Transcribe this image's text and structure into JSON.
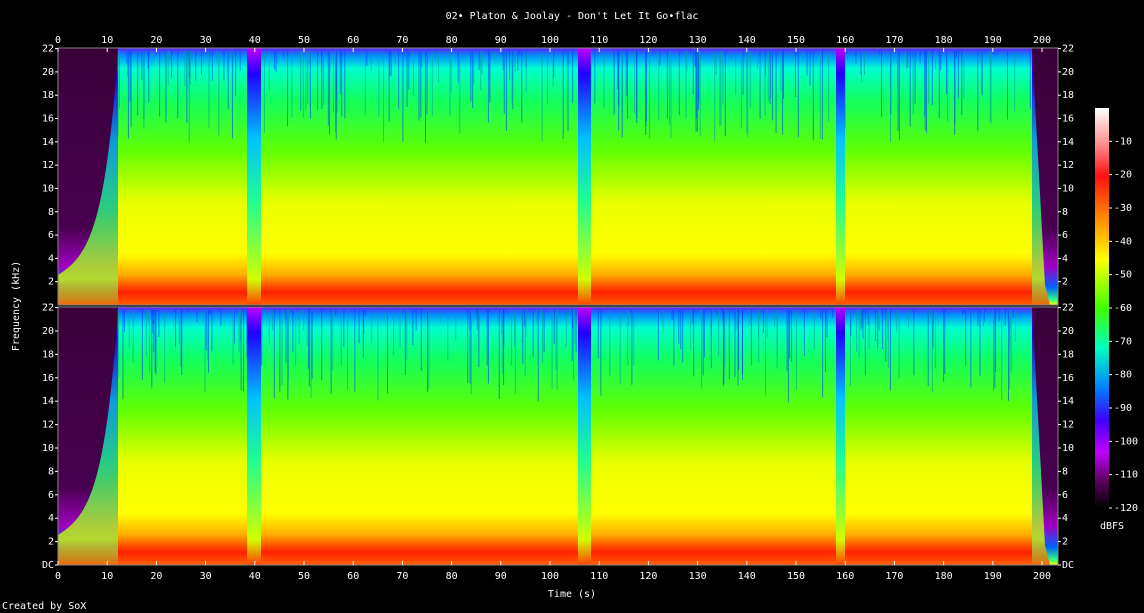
{
  "chart_data": {
    "type": "spectrogram",
    "title": "02• Platon & Joolay - Don't Let It Go•flac",
    "x_label": "Time (s)",
    "y_label": "Frequency (kHz)",
    "colorbar_label": "dBFS",
    "credit": "Created by SoX",
    "xlim": [
      0,
      203.25
    ],
    "xticks": [
      0,
      10,
      20,
      30,
      40,
      50,
      60,
      70,
      80,
      90,
      100,
      110,
      120,
      130,
      140,
      150,
      160,
      170,
      180,
      190,
      200
    ],
    "ylim": [
      0,
      22.05
    ],
    "yticks": [
      {
        "value": 0,
        "label": "DC"
      },
      2,
      4,
      6,
      8,
      10,
      12,
      14,
      16,
      18,
      20,
      22
    ],
    "clim": [
      -120,
      0
    ],
    "cticks": [
      -10,
      -20,
      -30,
      -40,
      -50,
      -60,
      -70,
      -80,
      -90,
      -100,
      -110,
      -120
    ]
  }
}
